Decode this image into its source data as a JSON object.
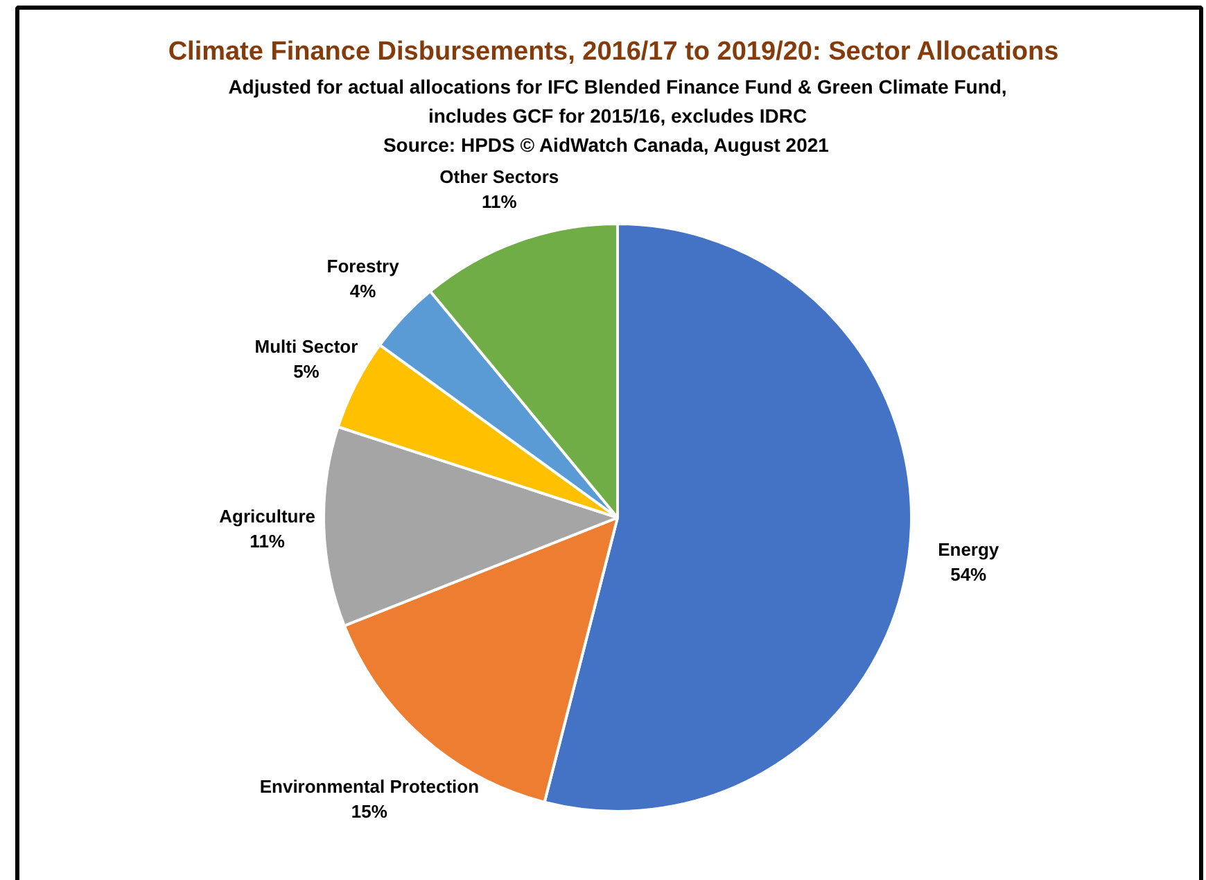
{
  "chart_data": {
    "type": "pie",
    "title": "Climate Finance Disbursements, 2016/17 to 2019/20:  Sector Allocations",
    "subtitle": "Adjusted for actual allocations for IFC Blended Finance Fund & Green Climate Fund,\nincludes GCF for 2015/16, excludes IDRC",
    "annotations": [
      "Source: HPDS     © AidWatch Canada, August 2021"
    ],
    "categories": [
      "Energy",
      "Environmental Protection",
      "Agriculture",
      "Multi Sector",
      "Forestry",
      "Other Sectors"
    ],
    "values": [
      54,
      15,
      11,
      5,
      4,
      11
    ],
    "value_labels": [
      "54%",
      "15%",
      "11%",
      "5%",
      "4%",
      "11%"
    ],
    "colors": [
      "#4472c4",
      "#ed7d31",
      "#a5a5a5",
      "#ffc000",
      "#5b9bd5",
      "#70ad47"
    ]
  }
}
